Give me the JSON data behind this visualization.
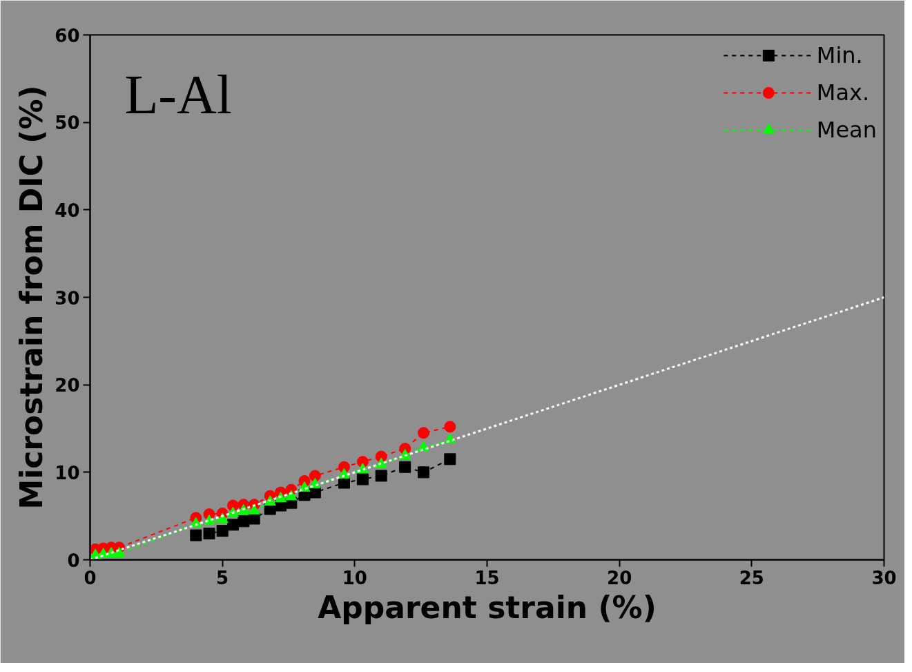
{
  "chart_data": {
    "type": "line",
    "xlabel": "Apparent strain (%)",
    "ylabel": "Microstrain from DIC (%)",
    "annotations": [
      "L-Al"
    ],
    "x": [
      0.2,
      0.5,
      0.8,
      1.1,
      4.0,
      4.5,
      5.0,
      5.4,
      5.8,
      6.2,
      6.8,
      7.2,
      7.6,
      8.1,
      8.5,
      9.6,
      10.3,
      11.0,
      11.9,
      12.6,
      13.6
    ],
    "series": [
      {
        "name": "Min.",
        "color": "#000000",
        "marker": "square",
        "line_style": "dashed",
        "values": [
          null,
          null,
          null,
          null,
          2.8,
          3.0,
          3.3,
          4.0,
          4.4,
          4.7,
          5.8,
          6.2,
          6.5,
          7.4,
          7.7,
          8.8,
          9.2,
          9.6,
          10.6,
          10.0,
          11.5
        ]
      },
      {
        "name": "Max.",
        "color": "#ff0000",
        "marker": "circle",
        "line_style": "dashed",
        "values": [
          1.2,
          1.3,
          1.4,
          1.4,
          4.8,
          5.2,
          5.3,
          6.2,
          6.3,
          6.3,
          7.3,
          7.7,
          8.0,
          9.0,
          9.6,
          10.6,
          11.2,
          11.8,
          12.7,
          14.5,
          15.2
        ]
      },
      {
        "name": "Mean",
        "color": "#00ff00",
        "marker": "triangle",
        "line_style": "dashed",
        "values": [
          0.5,
          0.6,
          0.7,
          0.7,
          4.1,
          4.4,
          4.6,
          5.3,
          5.6,
          5.6,
          6.6,
          7.0,
          7.2,
          8.2,
          8.6,
          9.7,
          10.3,
          10.9,
          11.9,
          12.8,
          13.7
        ]
      },
      {
        "color": "#ffffff",
        "marker": "none",
        "line_style": "dotted",
        "x": [
          0,
          30
        ],
        "values": [
          0,
          30
        ]
      }
    ],
    "xlim": [
      0,
      30
    ],
    "ylim": [
      0,
      60
    ],
    "xticks": [
      0,
      5,
      10,
      15,
      20,
      25,
      30
    ],
    "yticks": [
      0,
      10,
      20,
      30,
      40,
      50,
      60
    ],
    "grid": false,
    "legend": "top right"
  }
}
